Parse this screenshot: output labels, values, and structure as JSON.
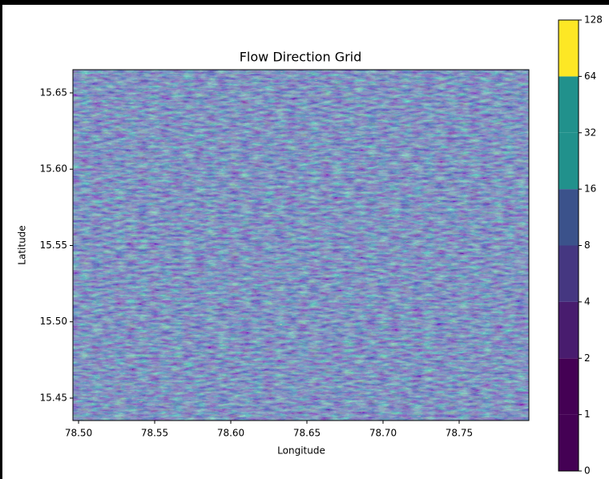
{
  "chart_data": {
    "type": "heatmap",
    "title": "Flow Direction Grid",
    "xlabel": "Longitude",
    "ylabel": "Latitude",
    "xlim": [
      78.4963,
      78.7958
    ],
    "ylim": [
      15.4353,
      15.6652
    ],
    "xticks": [
      {
        "value": 78.5,
        "label": "78.50"
      },
      {
        "value": 78.55,
        "label": "78.55"
      },
      {
        "value": 78.6,
        "label": "78.60"
      },
      {
        "value": 78.65,
        "label": "78.65"
      },
      {
        "value": 78.7,
        "label": "78.70"
      },
      {
        "value": 78.75,
        "label": "78.75"
      }
    ],
    "yticks": [
      {
        "value": 15.45,
        "label": "15.45"
      },
      {
        "value": 15.5,
        "label": "15.50"
      },
      {
        "value": 15.55,
        "label": "15.55"
      },
      {
        "value": 15.6,
        "label": "15.60"
      },
      {
        "value": 15.65,
        "label": "15.65"
      }
    ],
    "colorbar": {
      "ticks": [
        0,
        1,
        2,
        4,
        8,
        16,
        32,
        64,
        128
      ],
      "colors": [
        "#440154",
        "#440154",
        "#481c6e",
        "#453781",
        "#3b528b",
        "#21918c",
        "#21918c",
        "#fde725"
      ]
    }
  }
}
